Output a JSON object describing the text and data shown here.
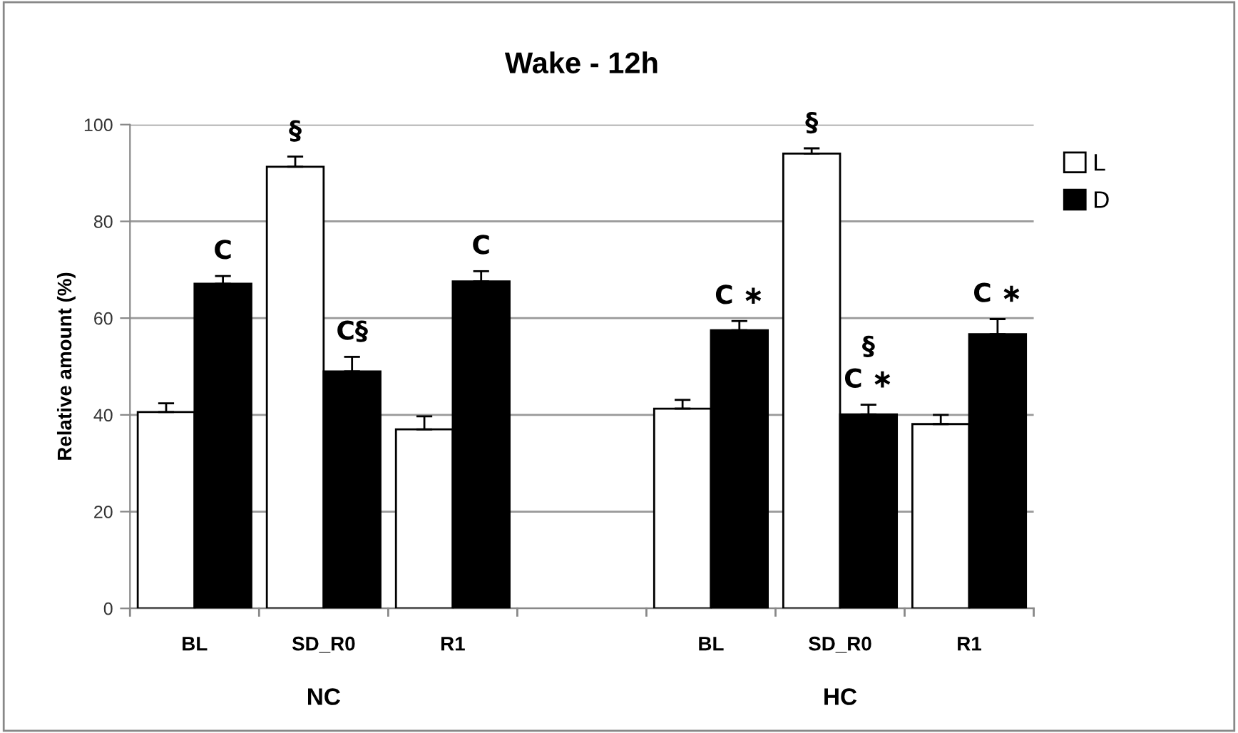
{
  "chart_data": {
    "type": "bar",
    "title": "Wake - 12h",
    "ylabel": "Relative amount (%)",
    "categories": [
      "BL",
      "SD_R0",
      "R1",
      null,
      "BL",
      "SD_R0",
      "R1"
    ],
    "series": [
      {
        "name": "L",
        "color": "#ffffff",
        "values": [
          40.6,
          91.3,
          37.0,
          null,
          41.3,
          94.0,
          38.1
        ],
        "errors": [
          [
            40.6,
            42.4
          ],
          [
            91.3,
            93.4
          ],
          [
            37.0,
            39.7
          ],
          null,
          [
            41.3,
            43.1
          ],
          [
            94.0,
            95.1
          ],
          [
            38.1,
            40.0
          ]
        ],
        "value_labels": [
          null,
          "§",
          null,
          null,
          null,
          "§",
          null
        ]
      },
      {
        "name": "D",
        "color": "#000000",
        "values": [
          67.1,
          49.0,
          67.6,
          null,
          57.5,
          40.1,
          56.7
        ],
        "errors": [
          [
            67.1,
            68.7
          ],
          [
            49.0,
            52.0
          ],
          [
            67.6,
            69.7
          ],
          null,
          [
            57.5,
            59.4
          ],
          [
            40.1,
            42.1
          ],
          [
            56.7,
            59.8
          ]
        ],
        "value_labels": [
          "C",
          "C§",
          "C",
          null,
          "C ∗",
          "§\nC ∗",
          "C ∗"
        ]
      }
    ],
    "annotations": [
      "NC",
      "HC"
    ],
    "ylim": [
      0,
      100
    ],
    "yticks": [
      0,
      20,
      40,
      60,
      80,
      100
    ],
    "grid": "y",
    "legend": "right"
  }
}
